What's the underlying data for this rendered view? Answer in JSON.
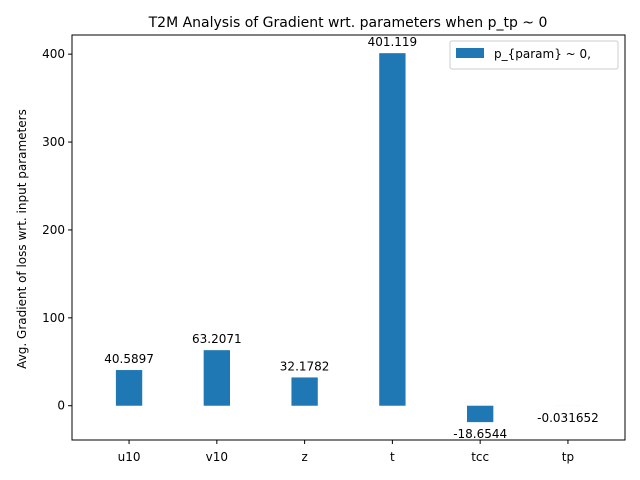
{
  "chart_data": {
    "type": "bar",
    "title": "T2M Analysis of Gradient wrt. parameters when p_tp ~ 0",
    "xlabel": "",
    "ylabel": "Avg. Gradient of loss wrt. input parameters",
    "categories": [
      "u10",
      "v10",
      "z",
      "t",
      "tcc",
      "tp"
    ],
    "series": [
      {
        "name": "p_{param} ~ 0,",
        "values": [
          40.5897,
          63.2071,
          32.1782,
          401.119,
          -18.6544,
          -0.031652
        ],
        "labels": [
          "40.5897",
          "63.2071",
          "32.1782",
          "401.119",
          "-18.6544",
          "-0.031652"
        ],
        "color": "#1f77b4"
      }
    ],
    "ylim": [
      -39.0,
      421.8
    ],
    "yticks": [
      0,
      100,
      200,
      300,
      400
    ],
    "grid": false,
    "legend_position": "top-right"
  }
}
